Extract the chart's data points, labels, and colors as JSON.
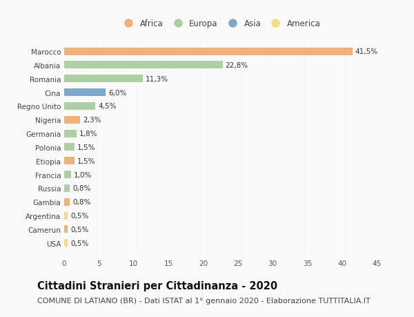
{
  "title": "Cittadini Stranieri per Cittadinanza - 2020",
  "subtitle": "COMUNE DI LATIANO (BR) - Dati ISTAT al 1° gennaio 2020 - Elaborazione TUTTITALIA.IT",
  "categories": [
    "Marocco",
    "Albania",
    "Romania",
    "Cina",
    "Regno Unito",
    "Nigeria",
    "Germania",
    "Polonia",
    "Etiopia",
    "Francia",
    "Russia",
    "Gambia",
    "Argentina",
    "Camerun",
    "USA"
  ],
  "values": [
    41.5,
    22.8,
    11.3,
    6.0,
    4.5,
    2.3,
    1.8,
    1.5,
    1.5,
    1.0,
    0.8,
    0.8,
    0.5,
    0.5,
    0.5
  ],
  "labels": [
    "41,5%",
    "22,8%",
    "11,3%",
    "6,0%",
    "4,5%",
    "2,3%",
    "1,8%",
    "1,5%",
    "1,5%",
    "1,0%",
    "0,8%",
    "0,8%",
    "0,5%",
    "0,5%",
    "0,5%"
  ],
  "continents": [
    "Africa",
    "Europa",
    "Europa",
    "Asia",
    "Europa",
    "Africa",
    "Europa",
    "Europa",
    "Africa",
    "Europa",
    "Europa",
    "Africa",
    "America",
    "Africa",
    "America"
  ],
  "continent_colors": {
    "Africa": "#F0B07A",
    "Europa": "#AECFA4",
    "Asia": "#7FA8C8",
    "America": "#F5DC80"
  },
  "legend_order": [
    "Africa",
    "Europa",
    "Asia",
    "America"
  ],
  "xlim": [
    0,
    45
  ],
  "xticks": [
    0,
    5,
    10,
    15,
    20,
    25,
    30,
    35,
    40,
    45
  ],
  "background_color": "#f9f9f9",
  "bar_height": 0.55,
  "title_fontsize": 10.5,
  "subtitle_fontsize": 8,
  "label_fontsize": 7.5,
  "tick_fontsize": 7.5,
  "legend_fontsize": 8.5
}
